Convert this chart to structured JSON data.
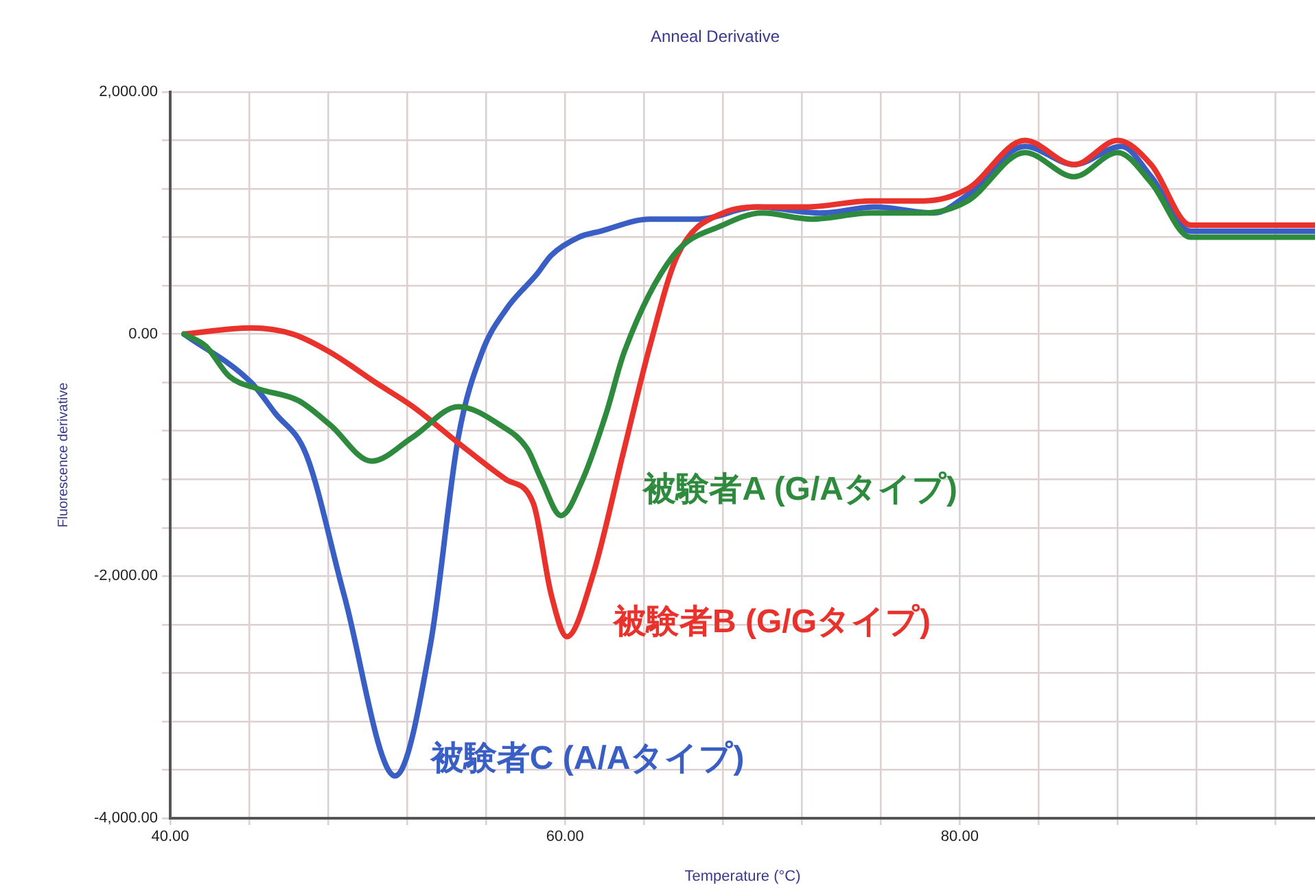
{
  "chart_data": {
    "type": "line",
    "title": "Anneal Derivative",
    "xlabel": "Temperature (°C)",
    "ylabel": "Fluorescence derivative",
    "xlim": [
      40,
      98
    ],
    "ylim": [
      -4000,
      2000
    ],
    "xticks": [
      {
        "value": 40,
        "label": "40.00"
      },
      {
        "value": 44,
        "label": null
      },
      {
        "value": 48,
        "label": null
      },
      {
        "value": 52,
        "label": null
      },
      {
        "value": 56,
        "label": null
      },
      {
        "value": 60,
        "label": "60.00"
      },
      {
        "value": 64,
        "label": null
      },
      {
        "value": 68,
        "label": null
      },
      {
        "value": 72,
        "label": null
      },
      {
        "value": 76,
        "label": null
      },
      {
        "value": 80,
        "label": "80.00"
      },
      {
        "value": 84,
        "label": null
      },
      {
        "value": 88,
        "label": null
      },
      {
        "value": 92,
        "label": null
      },
      {
        "value": 96,
        "label": null
      }
    ],
    "yticks": [
      {
        "value": -4000,
        "label": "-4,000.00"
      },
      {
        "value": -3600,
        "label": null
      },
      {
        "value": -3200,
        "label": null
      },
      {
        "value": -2800,
        "label": null
      },
      {
        "value": -2400,
        "label": null
      },
      {
        "value": -2000,
        "label": "-2,000.00"
      },
      {
        "value": -1600,
        "label": null
      },
      {
        "value": -1200,
        "label": null
      },
      {
        "value": -800,
        "label": null
      },
      {
        "value": -400,
        "label": null
      },
      {
        "value": 0,
        "label": "0.00"
      },
      {
        "value": 400,
        "label": null
      },
      {
        "value": 800,
        "label": null
      },
      {
        "value": 1200,
        "label": null
      },
      {
        "value": 1600,
        "label": null
      },
      {
        "value": 2000,
        "label": "2,000.00"
      }
    ],
    "grid": true,
    "legend": false,
    "marker": "none",
    "line_style": "solid",
    "series": [
      {
        "name": "被験者A (G/Aタイプ)",
        "color": "#2e8b3e",
        "x": [
          40.7,
          41.8,
          43.0,
          44.4,
          46.5,
          48.1,
          50.2,
          52.3,
          54.6,
          56.7,
          58.1,
          58.8,
          59.8,
          60.9,
          62.1,
          63.0,
          65.5,
          68.0,
          70.0,
          72.5,
          75.5,
          78.2,
          80.4,
          83.3,
          85.8,
          88.0,
          89.7,
          91.7,
          98
        ],
        "values": [
          0,
          -100,
          -350,
          -450,
          -550,
          -750,
          -1050,
          -850,
          -600,
          -750,
          -950,
          -1200,
          -1500,
          -1200,
          -650,
          -150,
          650,
          900,
          1000,
          950,
          1000,
          1000,
          1100,
          1500,
          1300,
          1500,
          1250,
          800,
          800
        ]
      },
      {
        "name": "被験者B (G/Gタイプ)",
        "color": "#e8322b",
        "x": [
          40.7,
          44.1,
          46.2,
          48.1,
          50.4,
          52.3,
          54.6,
          57.0,
          58.4,
          59.3,
          60.1,
          61.4,
          63.0,
          64.3,
          65.7,
          68.0,
          70.0,
          72.2,
          75.5,
          78.2,
          80.4,
          83.3,
          85.8,
          88.0,
          89.7,
          91.7,
          98
        ],
        "values": [
          0,
          50,
          0,
          -150,
          -400,
          -600,
          -900,
          -1200,
          -1400,
          -2150,
          -2500,
          -2000,
          -950,
          -100,
          650,
          1000,
          1050,
          1050,
          1100,
          1100,
          1200,
          1600,
          1400,
          1600,
          1400,
          900,
          900
        ]
      },
      {
        "name": "被験者C (A/Aタイプ)",
        "color": "#3a5fc4",
        "x": [
          40.7,
          44.1,
          45.3,
          46.9,
          48.8,
          51.4,
          53.2,
          54.6,
          55.8,
          57.0,
          58.6,
          59.3,
          60.7,
          61.8,
          64.3,
          66.8,
          69.7,
          73.0,
          75.7,
          78.7,
          80.4,
          83.3,
          85.8,
          88.2,
          89.7,
          91.7,
          98
        ],
        "values": [
          0,
          -400,
          -650,
          -1000,
          -2150,
          -3650,
          -2550,
          -850,
          -150,
          200,
          500,
          650,
          800,
          850,
          950,
          950,
          1050,
          1000,
          1050,
          1000,
          1150,
          1550,
          1400,
          1550,
          1300,
          850,
          850
        ]
      }
    ]
  }
}
